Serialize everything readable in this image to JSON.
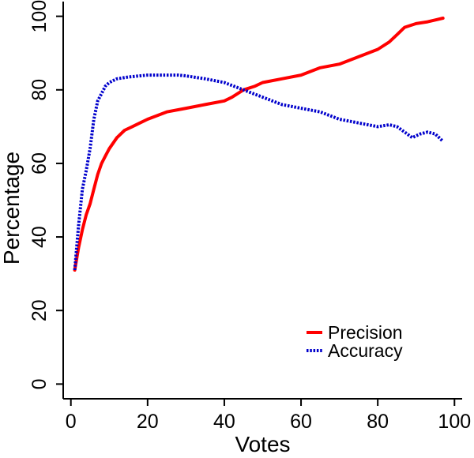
{
  "chart_data": {
    "type": "line",
    "title": "",
    "xlabel": "Votes",
    "ylabel": "Percentage",
    "xlim": [
      0,
      100
    ],
    "ylim": [
      0,
      100
    ],
    "xticks": [
      0,
      20,
      40,
      60,
      80,
      100
    ],
    "yticks": [
      0,
      20,
      40,
      60,
      80,
      100
    ],
    "grid": false,
    "legend_position": "bottom-right",
    "series": [
      {
        "name": "Precision",
        "color": "#ff0000",
        "style": "solid",
        "x": [
          1,
          2,
          3,
          4,
          5,
          6,
          7,
          8,
          9,
          10,
          12,
          14,
          16,
          18,
          20,
          25,
          30,
          35,
          40,
          42,
          45,
          48,
          50,
          55,
          60,
          65,
          70,
          75,
          80,
          83,
          85,
          87,
          90,
          93,
          95,
          97
        ],
        "y": [
          31,
          37,
          42,
          46,
          49,
          53,
          57,
          60,
          62,
          64,
          67,
          69,
          70,
          71,
          72,
          74,
          75,
          76,
          77,
          78,
          80,
          81,
          82,
          83,
          84,
          86,
          87,
          89,
          91,
          93,
          95,
          97,
          98,
          98.5,
          99,
          99.5
        ]
      },
      {
        "name": "Accuracy",
        "color": "#0000cc",
        "style": "dotted",
        "x": [
          1,
          2,
          3,
          4,
          5,
          6,
          7,
          8,
          9,
          10,
          12,
          15,
          20,
          25,
          28,
          30,
          35,
          40,
          45,
          50,
          55,
          60,
          65,
          70,
          75,
          80,
          83,
          85,
          87,
          89,
          91,
          93,
          95,
          97
        ],
        "y": [
          31,
          43,
          53,
          58,
          64,
          72,
          77,
          79,
          81,
          82,
          83,
          83.5,
          84,
          84,
          84,
          83.8,
          83,
          82,
          80,
          78,
          76,
          75,
          74,
          72,
          71,
          70,
          70.5,
          70,
          68.5,
          67,
          68,
          68.5,
          68,
          66
        ]
      }
    ]
  }
}
